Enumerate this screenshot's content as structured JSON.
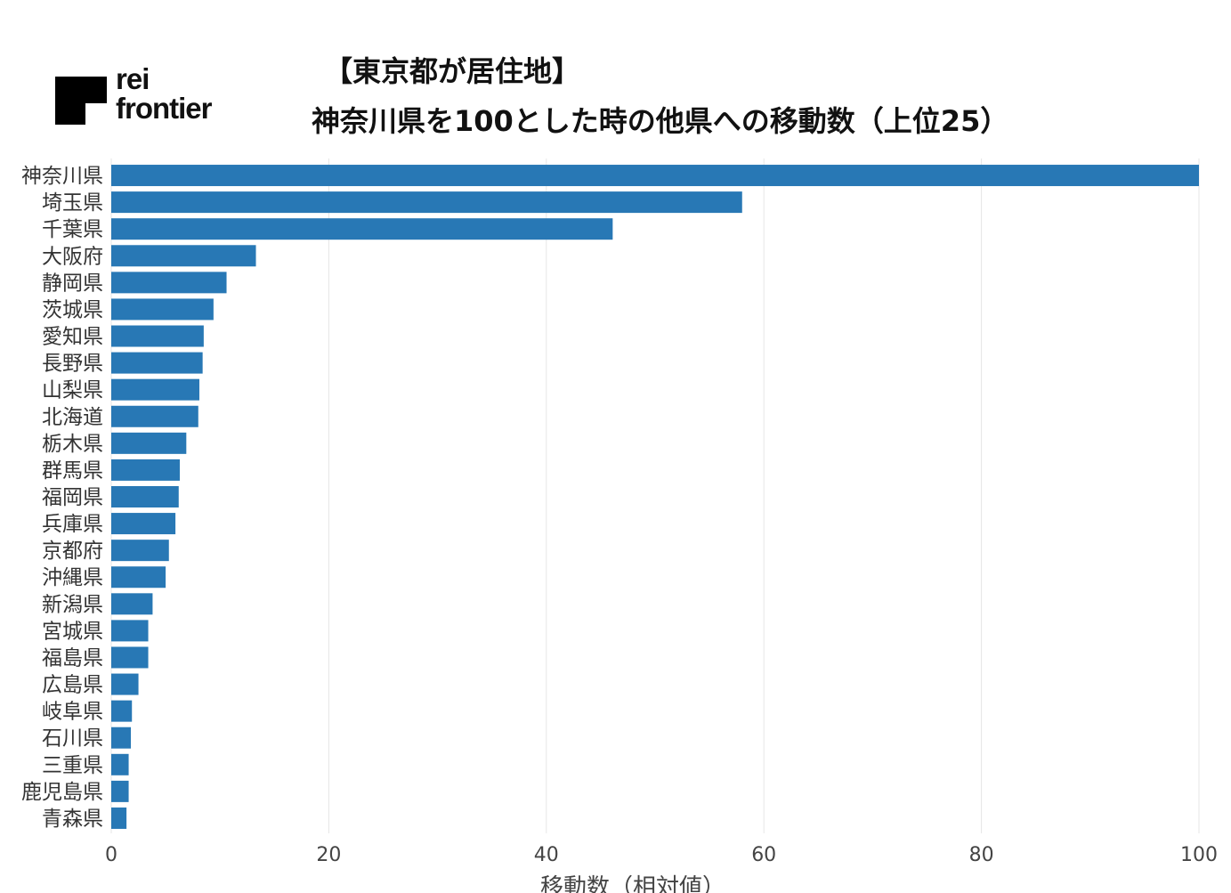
{
  "brand": {
    "line1": "rei",
    "line2": "frontier",
    "mark_color": "#000000"
  },
  "title": {
    "line1": "【東京都が居住地】",
    "line2": "神奈川県を100とした時の他県への移動数（上位25）"
  },
  "colors": {
    "bar": "#2878b5",
    "grid": "#e6e6e6"
  },
  "chart_data": {
    "type": "bar",
    "orientation": "horizontal",
    "title": "【東京都が居住地】神奈川県を100とした時の他県への移動数（上位25）",
    "xlabel": "移動数（相対値）",
    "ylabel": "",
    "xlim": [
      0,
      100
    ],
    "xticks": [
      0,
      20,
      40,
      60,
      80,
      100
    ],
    "grid": "vertical",
    "categories": [
      "神奈川県",
      "埼玉県",
      "千葉県",
      "大阪府",
      "静岡県",
      "茨城県",
      "愛知県",
      "長野県",
      "山梨県",
      "北海道",
      "栃木県",
      "群馬県",
      "福岡県",
      "兵庫県",
      "京都府",
      "沖縄県",
      "新潟県",
      "宮城県",
      "福島県",
      "広島県",
      "岐阜県",
      "石川県",
      "三重県",
      "鹿児島県",
      "青森県"
    ],
    "values": [
      100,
      58.0,
      46.1,
      13.3,
      10.6,
      9.4,
      8.5,
      8.4,
      8.1,
      8.0,
      6.9,
      6.3,
      6.2,
      5.9,
      5.3,
      5.0,
      3.8,
      3.4,
      3.4,
      2.5,
      1.9,
      1.8,
      1.6,
      1.6,
      1.4
    ]
  }
}
